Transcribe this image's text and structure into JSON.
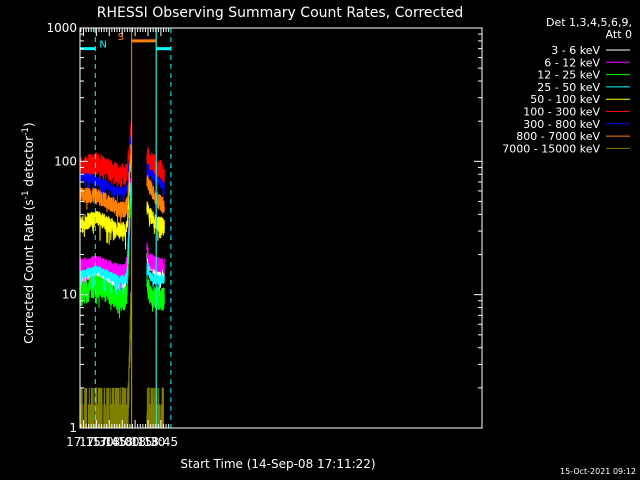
{
  "chart_data": {
    "type": "line",
    "title": "RHESSI Observing Summary Count Rates, Corrected",
    "xlabel": "Start Time (14-Sep-08 17:11:22)",
    "ylabel": "Corrected Count Rate (s⁻¹ detector⁻¹)",
    "ylabel_parts": {
      "main": "Corrected Count Rate (s",
      "exp1": "-1",
      "mid": " detector",
      "exp2": "-1",
      "end": ")"
    },
    "xlim_min": [
      1031,
      1498
    ],
    "ylim": [
      1,
      1000
    ],
    "yscale": "log",
    "x_ticks_min": [
      1035,
      1050,
      1065,
      1080,
      1095,
      1110,
      1125
    ],
    "x_tick_labels": [
      "17:15",
      "17:30",
      "17:45",
      "18:00",
      "18:15",
      "18:30",
      "18:45"
    ],
    "y_ticks": [
      1,
      10,
      100,
      1000
    ],
    "y_tick_labels": [
      "1",
      "10",
      "100",
      "1000"
    ],
    "legend_header": [
      "Det 1,3,4,5,6,9,",
      "Att 0"
    ],
    "legend_position": "right",
    "timestamp": "15-Oct-2021 09:12",
    "data_gaps_min": [
      [
        1022.5,
        1023.0
      ],
      [
        1105.3,
        1108.5
      ]
    ],
    "series": [
      {
        "name": "3 - 6 keV",
        "color": "#ffffff",
        "base": [
          [
            1031,
            13
          ],
          [
            1040,
            14
          ],
          [
            1050,
            15
          ],
          [
            1065,
            13
          ],
          [
            1075,
            12
          ],
          [
            1083,
            12
          ],
          [
            1086,
            14
          ],
          [
            1089,
            40
          ],
          [
            1090,
            60
          ],
          [
            1112,
            16
          ],
          [
            1120,
            15
          ],
          [
            1129,
            14
          ]
        ]
      },
      {
        "name": "6 - 12 keV",
        "color": "#ff00ff",
        "base": [
          [
            1031,
            16.5
          ],
          [
            1045,
            17
          ],
          [
            1050,
            17.5
          ],
          [
            1065,
            16
          ],
          [
            1075,
            15
          ],
          [
            1083,
            15
          ],
          [
            1086,
            18
          ],
          [
            1089,
            50
          ],
          [
            1090,
            70
          ],
          [
            1112,
            18
          ],
          [
            1120,
            17
          ],
          [
            1129,
            16.5
          ]
        ]
      },
      {
        "name": "12 - 25 keV",
        "color": "#00ff00",
        "base": [
          [
            1031,
            10
          ],
          [
            1045,
            11.5
          ],
          [
            1050,
            12
          ],
          [
            1065,
            10.5
          ],
          [
            1075,
            9
          ],
          [
            1083,
            9.5
          ],
          [
            1086,
            11
          ],
          [
            1089,
            40
          ],
          [
            1090,
            60
          ],
          [
            1112,
            10
          ],
          [
            1120,
            9.5
          ],
          [
            1129,
            9.5
          ]
        ]
      },
      {
        "name": "25 - 50 keV",
        "color": "#00ffff",
        "base": [
          [
            1031,
            14
          ],
          [
            1045,
            15
          ],
          [
            1050,
            15.5
          ],
          [
            1065,
            14
          ],
          [
            1075,
            13
          ],
          [
            1083,
            13
          ],
          [
            1086,
            15
          ],
          [
            1089,
            45
          ],
          [
            1090,
            65
          ],
          [
            1112,
            14
          ],
          [
            1120,
            13
          ],
          [
            1129,
            13
          ]
        ]
      },
      {
        "name": "50 - 100 keV",
        "color": "#ffff00",
        "base": [
          [
            1031,
            34
          ],
          [
            1045,
            37
          ],
          [
            1050,
            38
          ],
          [
            1065,
            34
          ],
          [
            1075,
            31
          ],
          [
            1083,
            31
          ],
          [
            1086,
            33
          ],
          [
            1089,
            80
          ],
          [
            1090,
            100
          ],
          [
            1112,
            40
          ],
          [
            1120,
            35
          ],
          [
            1129,
            33
          ]
        ]
      },
      {
        "name": "100 - 300 keV",
        "color": "#ff0000",
        "base": [
          [
            1031,
            90
          ],
          [
            1045,
            97
          ],
          [
            1050,
            98
          ],
          [
            1065,
            88
          ],
          [
            1075,
            80
          ],
          [
            1083,
            80
          ],
          [
            1086,
            85
          ],
          [
            1089,
            130
          ],
          [
            1090,
            170
          ],
          [
            1112,
            103
          ],
          [
            1120,
            90
          ],
          [
            1129,
            82
          ]
        ]
      },
      {
        "name": "300 - 800 keV",
        "color": "#0000ff",
        "base": [
          [
            1031,
            77
          ],
          [
            1045,
            74
          ],
          [
            1050,
            72
          ],
          [
            1065,
            65
          ],
          [
            1075,
            60
          ],
          [
            1083,
            60
          ],
          [
            1086,
            65
          ],
          [
            1089,
            120
          ],
          [
            1090,
            150
          ],
          [
            1112,
            85
          ],
          [
            1120,
            72
          ],
          [
            1129,
            66
          ]
        ]
      },
      {
        "name": "800 - 7000 keV",
        "color": "#ff8000",
        "base": [
          [
            1031,
            57
          ],
          [
            1045,
            56
          ],
          [
            1050,
            55
          ],
          [
            1065,
            50
          ],
          [
            1075,
            44
          ],
          [
            1083,
            44
          ],
          [
            1086,
            48
          ],
          [
            1089,
            100
          ],
          [
            1090,
            120
          ],
          [
            1112,
            65
          ],
          [
            1120,
            53
          ],
          [
            1129,
            46
          ]
        ]
      },
      {
        "name": "7000 - 15000 keV",
        "color": "#808000",
        "base": [
          [
            1031,
            1
          ],
          [
            1040,
            1.2
          ],
          [
            1050,
            1.5
          ],
          [
            1065,
            1.1
          ],
          [
            1075,
            1
          ],
          [
            1083,
            1
          ],
          [
            1086,
            1.3
          ],
          [
            1089,
            4
          ],
          [
            1090,
            8
          ],
          [
            1112,
            1.2
          ],
          [
            1129,
            1
          ]
        ]
      }
    ],
    "flags": [
      {
        "label": "N",
        "color": "#00ffff",
        "level": 700,
        "from": 1031,
        "to": 1048.8,
        "line_style": "solid",
        "edges": [
          [
            1031,
            "solid"
          ],
          [
            1048.8,
            "dashed"
          ]
        ]
      },
      {
        "label": "S",
        "color": "#ff8000",
        "level": 800,
        "from": 1091,
        "to": 1119.5,
        "line_style": "solid",
        "edges": [
          [
            1091,
            "solid"
          ],
          [
            1119.5,
            "solid"
          ]
        ]
      },
      {
        "label": "",
        "color": "#00ffff",
        "level": 700,
        "from": 1119.5,
        "to": 1136.6,
        "line_style": "solid",
        "edges": [
          [
            1119.5,
            "solid"
          ],
          [
            1136.6,
            "dashed"
          ]
        ]
      }
    ]
  }
}
